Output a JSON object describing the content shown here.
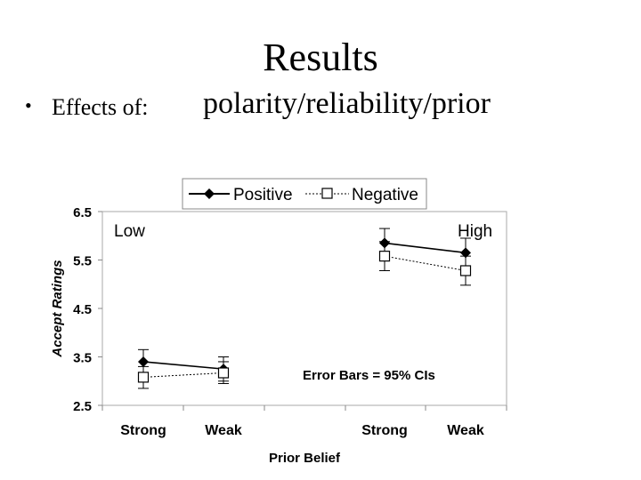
{
  "slide": {
    "title": "Results",
    "bullet_symbol": "•",
    "bullet_prefix": "Effects of:",
    "bullet_main": "polarity/reliability/prior"
  },
  "chart_data": {
    "type": "line",
    "title": "",
    "xlabel": "Prior Belief",
    "ylabel": "Accept Ratings",
    "ylim": [
      2.5,
      6.5
    ],
    "yticks": [
      "2.5",
      "3.5",
      "4.5",
      "5.5",
      "6.5"
    ],
    "categories": [
      "Strong",
      "Weak",
      "Strong",
      "Weak"
    ],
    "groups": [
      "Low",
      "High"
    ],
    "annotation": "Error Bars = 95%  CIs",
    "series": [
      {
        "name": "Positive",
        "marker": "filled-diamond",
        "line_style": "solid",
        "values": [
          3.4,
          3.25,
          5.85,
          5.65
        ],
        "ci_low": [
          3.15,
          3.0,
          5.55,
          5.35
        ],
        "ci_high": [
          3.65,
          3.5,
          6.15,
          5.95
        ]
      },
      {
        "name": "Negative",
        "marker": "open-square",
        "line_style": "dotted",
        "values": [
          3.08,
          3.17,
          5.58,
          5.28
        ],
        "ci_low": [
          2.85,
          2.95,
          5.28,
          4.98
        ],
        "ci_high": [
          3.3,
          3.4,
          5.88,
          5.58
        ]
      }
    ],
    "legend": [
      "Positive",
      "Negative"
    ],
    "legend_position": "top"
  }
}
